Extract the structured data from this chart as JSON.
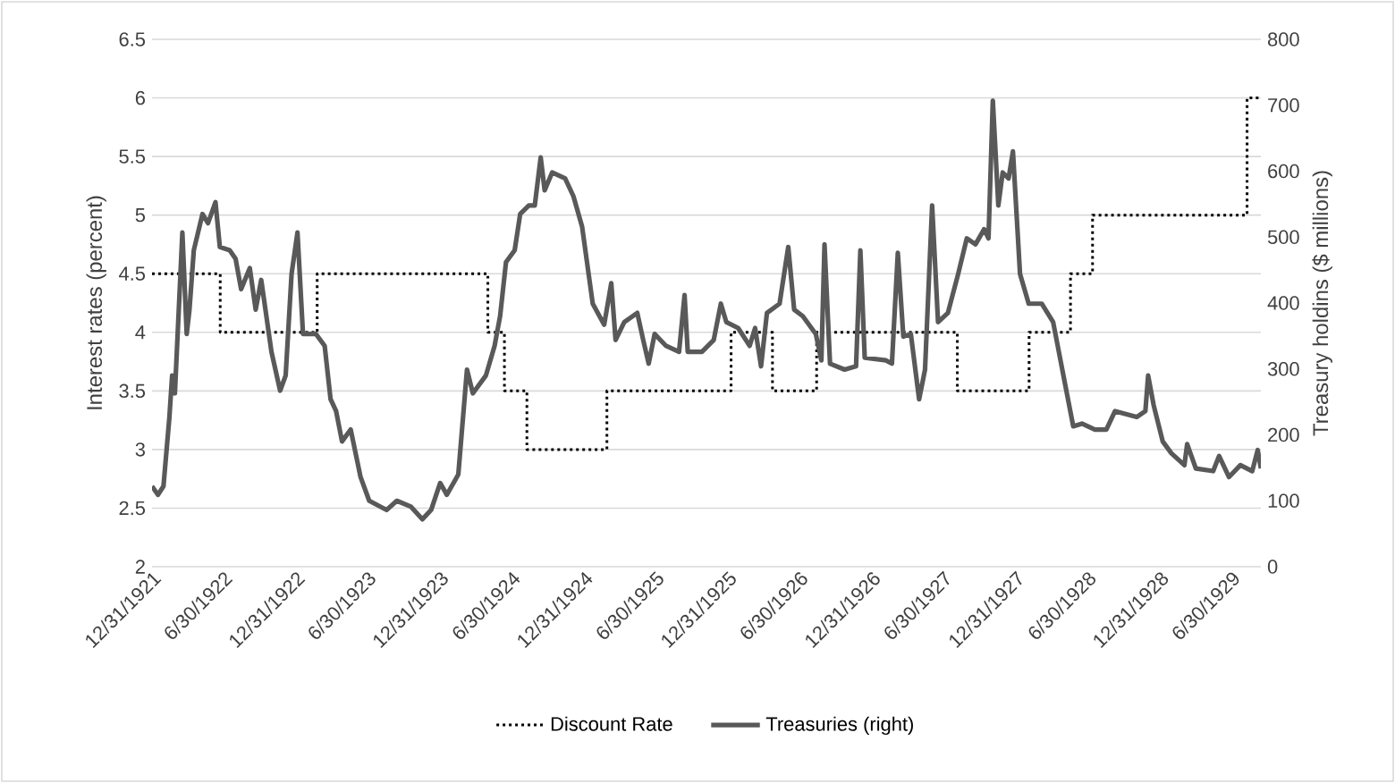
{
  "chart_data": {
    "type": "line",
    "ylabel": "Interest rates (percent)",
    "y2label": "Treasury holdins ($ millions)",
    "xlim": [
      "1921-12-31",
      "1929-09-13"
    ],
    "xticks": [
      {
        "value": "1921-12-31",
        "label": "12/31/1921"
      },
      {
        "value": "1922-06-30",
        "label": "6/30/1922"
      },
      {
        "value": "1922-12-31",
        "label": "12/31/1922"
      },
      {
        "value": "1923-06-30",
        "label": "6/30/1923"
      },
      {
        "value": "1923-12-31",
        "label": "12/31/1923"
      },
      {
        "value": "1924-06-30",
        "label": "6/30/1924"
      },
      {
        "value": "1924-12-31",
        "label": "12/31/1924"
      },
      {
        "value": "1925-06-30",
        "label": "6/30/1925"
      },
      {
        "value": "1925-12-31",
        "label": "12/31/1925"
      },
      {
        "value": "1926-06-30",
        "label": "6/30/1926"
      },
      {
        "value": "1926-12-31",
        "label": "12/31/1926"
      },
      {
        "value": "1927-06-30",
        "label": "6/30/1927"
      },
      {
        "value": "1927-12-31",
        "label": "12/31/1927"
      },
      {
        "value": "1928-06-30",
        "label": "6/30/1928"
      },
      {
        "value": "1928-12-31",
        "label": "12/31/1928"
      },
      {
        "value": "1929-06-30",
        "label": "6/30/1929"
      }
    ],
    "ylim": [
      2,
      6.5
    ],
    "yticks": [
      2,
      2.5,
      3,
      3.5,
      4,
      4.5,
      5,
      5.5,
      6,
      6.5
    ],
    "y2lim": [
      0,
      800
    ],
    "y2ticks": [
      0,
      100,
      200,
      300,
      400,
      500,
      600,
      700,
      800
    ],
    "grid": "y",
    "legend": "bottom",
    "series": [
      {
        "name": "Discount Rate",
        "type": "step",
        "axis": "y",
        "color": "#000000",
        "line_style": "dotted",
        "x": [
          "1921-12-31",
          "1922-06-22",
          "1923-02-23",
          "1924-05-01",
          "1924-06-12",
          "1924-08-08",
          "1925-02-27",
          "1926-01-08",
          "1926-04-23",
          "1926-08-13",
          "1927-08-05",
          "1928-02-03",
          "1928-05-18",
          "1928-07-13",
          "1929-08-09",
          "1929-09-13"
        ],
        "values": [
          4.5,
          4,
          4.5,
          4,
          3.5,
          3,
          3.5,
          4,
          3.5,
          4,
          3.5,
          4,
          4.5,
          5,
          6,
          6
        ]
      },
      {
        "name": "Treasuries (right)",
        "axis": "y2",
        "color": "#595959",
        "line_style": "solid",
        "x": [
          "1921-12-31",
          "1922-01-15",
          "1922-01-29",
          "1922-02-13",
          "1922-02-20",
          "1922-02-27",
          "1922-03-18",
          "1922-03-29",
          "1922-04-05",
          "1922-04-16",
          "1922-05-08",
          "1922-05-22",
          "1922-06-10",
          "1922-06-21",
          "1922-07-16",
          "1922-07-31",
          "1922-08-14",
          "1922-09-05",
          "1922-09-20",
          "1922-10-04",
          "1922-10-30",
          "1922-11-21",
          "1922-12-05",
          "1922-12-20",
          "1923-01-04",
          "1923-01-18",
          "1923-02-20",
          "1923-03-14",
          "1923-03-29",
          "1923-04-12",
          "1923-04-27",
          "1923-05-19",
          "1923-06-13",
          "1923-07-05",
          "1923-08-18",
          "1923-09-13",
          "1923-10-19",
          "1923-11-17",
          "1923-12-09",
          "1924-01-01",
          "1924-01-18",
          "1924-02-16",
          "1924-03-09",
          "1924-03-24",
          "1924-04-26",
          "1924-05-18",
          "1924-06-01",
          "1924-06-16",
          "1924-07-08",
          "1924-07-22",
          "1924-08-13",
          "1924-08-28",
          "1924-09-12",
          "1924-09-22",
          "1924-10-11",
          "1924-11-13",
          "1924-12-04",
          "1924-12-26",
          "1925-01-22",
          "1925-02-20",
          "1925-03-10",
          "1925-03-21",
          "1925-04-12",
          "1925-05-15",
          "1925-05-30",
          "1925-06-13",
          "1925-06-28",
          "1925-07-27",
          "1925-08-29",
          "1925-09-12",
          "1925-09-20",
          "1925-10-26",
          "1925-11-25",
          "1925-12-13",
          "1925-12-27",
          "1926-01-26",
          "1926-02-24",
          "1926-03-10",
          "1926-03-25",
          "1926-04-09",
          "1926-05-11",
          "1926-06-02",
          "1926-06-17",
          "1926-07-09",
          "1926-08-11",
          "1926-08-25",
          "1926-09-02",
          "1926-09-16",
          "1926-10-23",
          "1926-11-21",
          "1926-12-02",
          "1926-12-13",
          "1927-02-05",
          "1927-02-20",
          "1927-03-07",
          "1927-03-21",
          "1927-04-09",
          "1927-04-30",
          "1927-05-15",
          "1927-06-02",
          "1927-06-17",
          "1927-07-12",
          "1927-08-07",
          "1927-08-29",
          "1927-09-20",
          "1927-10-12",
          "1927-10-23",
          "1927-11-03",
          "1927-11-17",
          "1927-11-28",
          "1927-12-13",
          "1927-12-24",
          "1928-01-11",
          "1928-02-02",
          "1928-03-06",
          "1928-04-04",
          "1928-05-03",
          "1928-05-25",
          "1928-06-16",
          "1928-07-19",
          "1928-08-17",
          "1928-09-08",
          "1928-11-02",
          "1928-11-24",
          "1928-12-01",
          "1928-12-15",
          "1929-01-07",
          "1929-01-29",
          "1929-03-03",
          "1929-03-10",
          "1929-04-01",
          "1929-05-15",
          "1929-05-30",
          "1929-06-24",
          "1929-07-23",
          "1929-08-22",
          "1929-09-05",
          "1929-09-13"
        ],
        "values": [
          122,
          109,
          122,
          226,
          290,
          263,
          507,
          353,
          390,
          480,
          535,
          521,
          553,
          485,
          480,
          467,
          421,
          453,
          390,
          435,
          326,
          267,
          290,
          444,
          507,
          353,
          353,
          335,
          254,
          236,
          190,
          208,
          136,
          100,
          86,
          100,
          91,
          72,
          86,
          127,
          109,
          140,
          299,
          263,
          290,
          335,
          380,
          462,
          480,
          535,
          548,
          548,
          621,
          571,
          598,
          589,
          562,
          516,
          399,
          367,
          430,
          344,
          371,
          385,
          344,
          308,
          353,
          335,
          326,
          412,
          326,
          326,
          344,
          399,
          371,
          362,
          335,
          362,
          304,
          385,
          399,
          485,
          390,
          380,
          353,
          313,
          489,
          308,
          299,
          304,
          480,
          317,
          313,
          308,
          476,
          349,
          353,
          254,
          299,
          548,
          371,
          385,
          444,
          498,
          489,
          512,
          498,
          707,
          548,
          598,
          589,
          630,
          444,
          399,
          399,
          371,
          281,
          213,
          217,
          208,
          208,
          236,
          227,
          236,
          290,
          245,
          190,
          172,
          154,
          186,
          149,
          145,
          168,
          136,
          154,
          145,
          177,
          149
        ]
      }
    ]
  }
}
